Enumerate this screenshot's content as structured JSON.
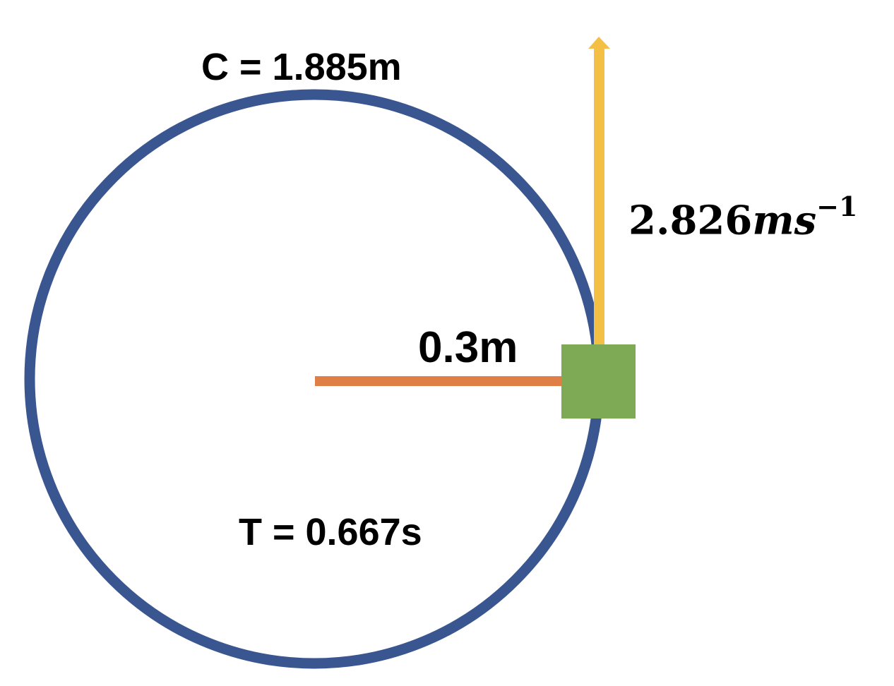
{
  "labels": {
    "circumference": "C = 1.885m",
    "radius": "0.3m",
    "period": "T = 0.667s",
    "velocity_value": "2.826",
    "velocity_unit": "ms",
    "velocity_exponent": "−1"
  },
  "colors": {
    "circle": "#3A5690",
    "radius_line": "#E07F45",
    "mass_block": "#7EAA55",
    "velocity_arrow": "#F3BF45",
    "text": "#000000",
    "background": "#FFFFFF"
  }
}
